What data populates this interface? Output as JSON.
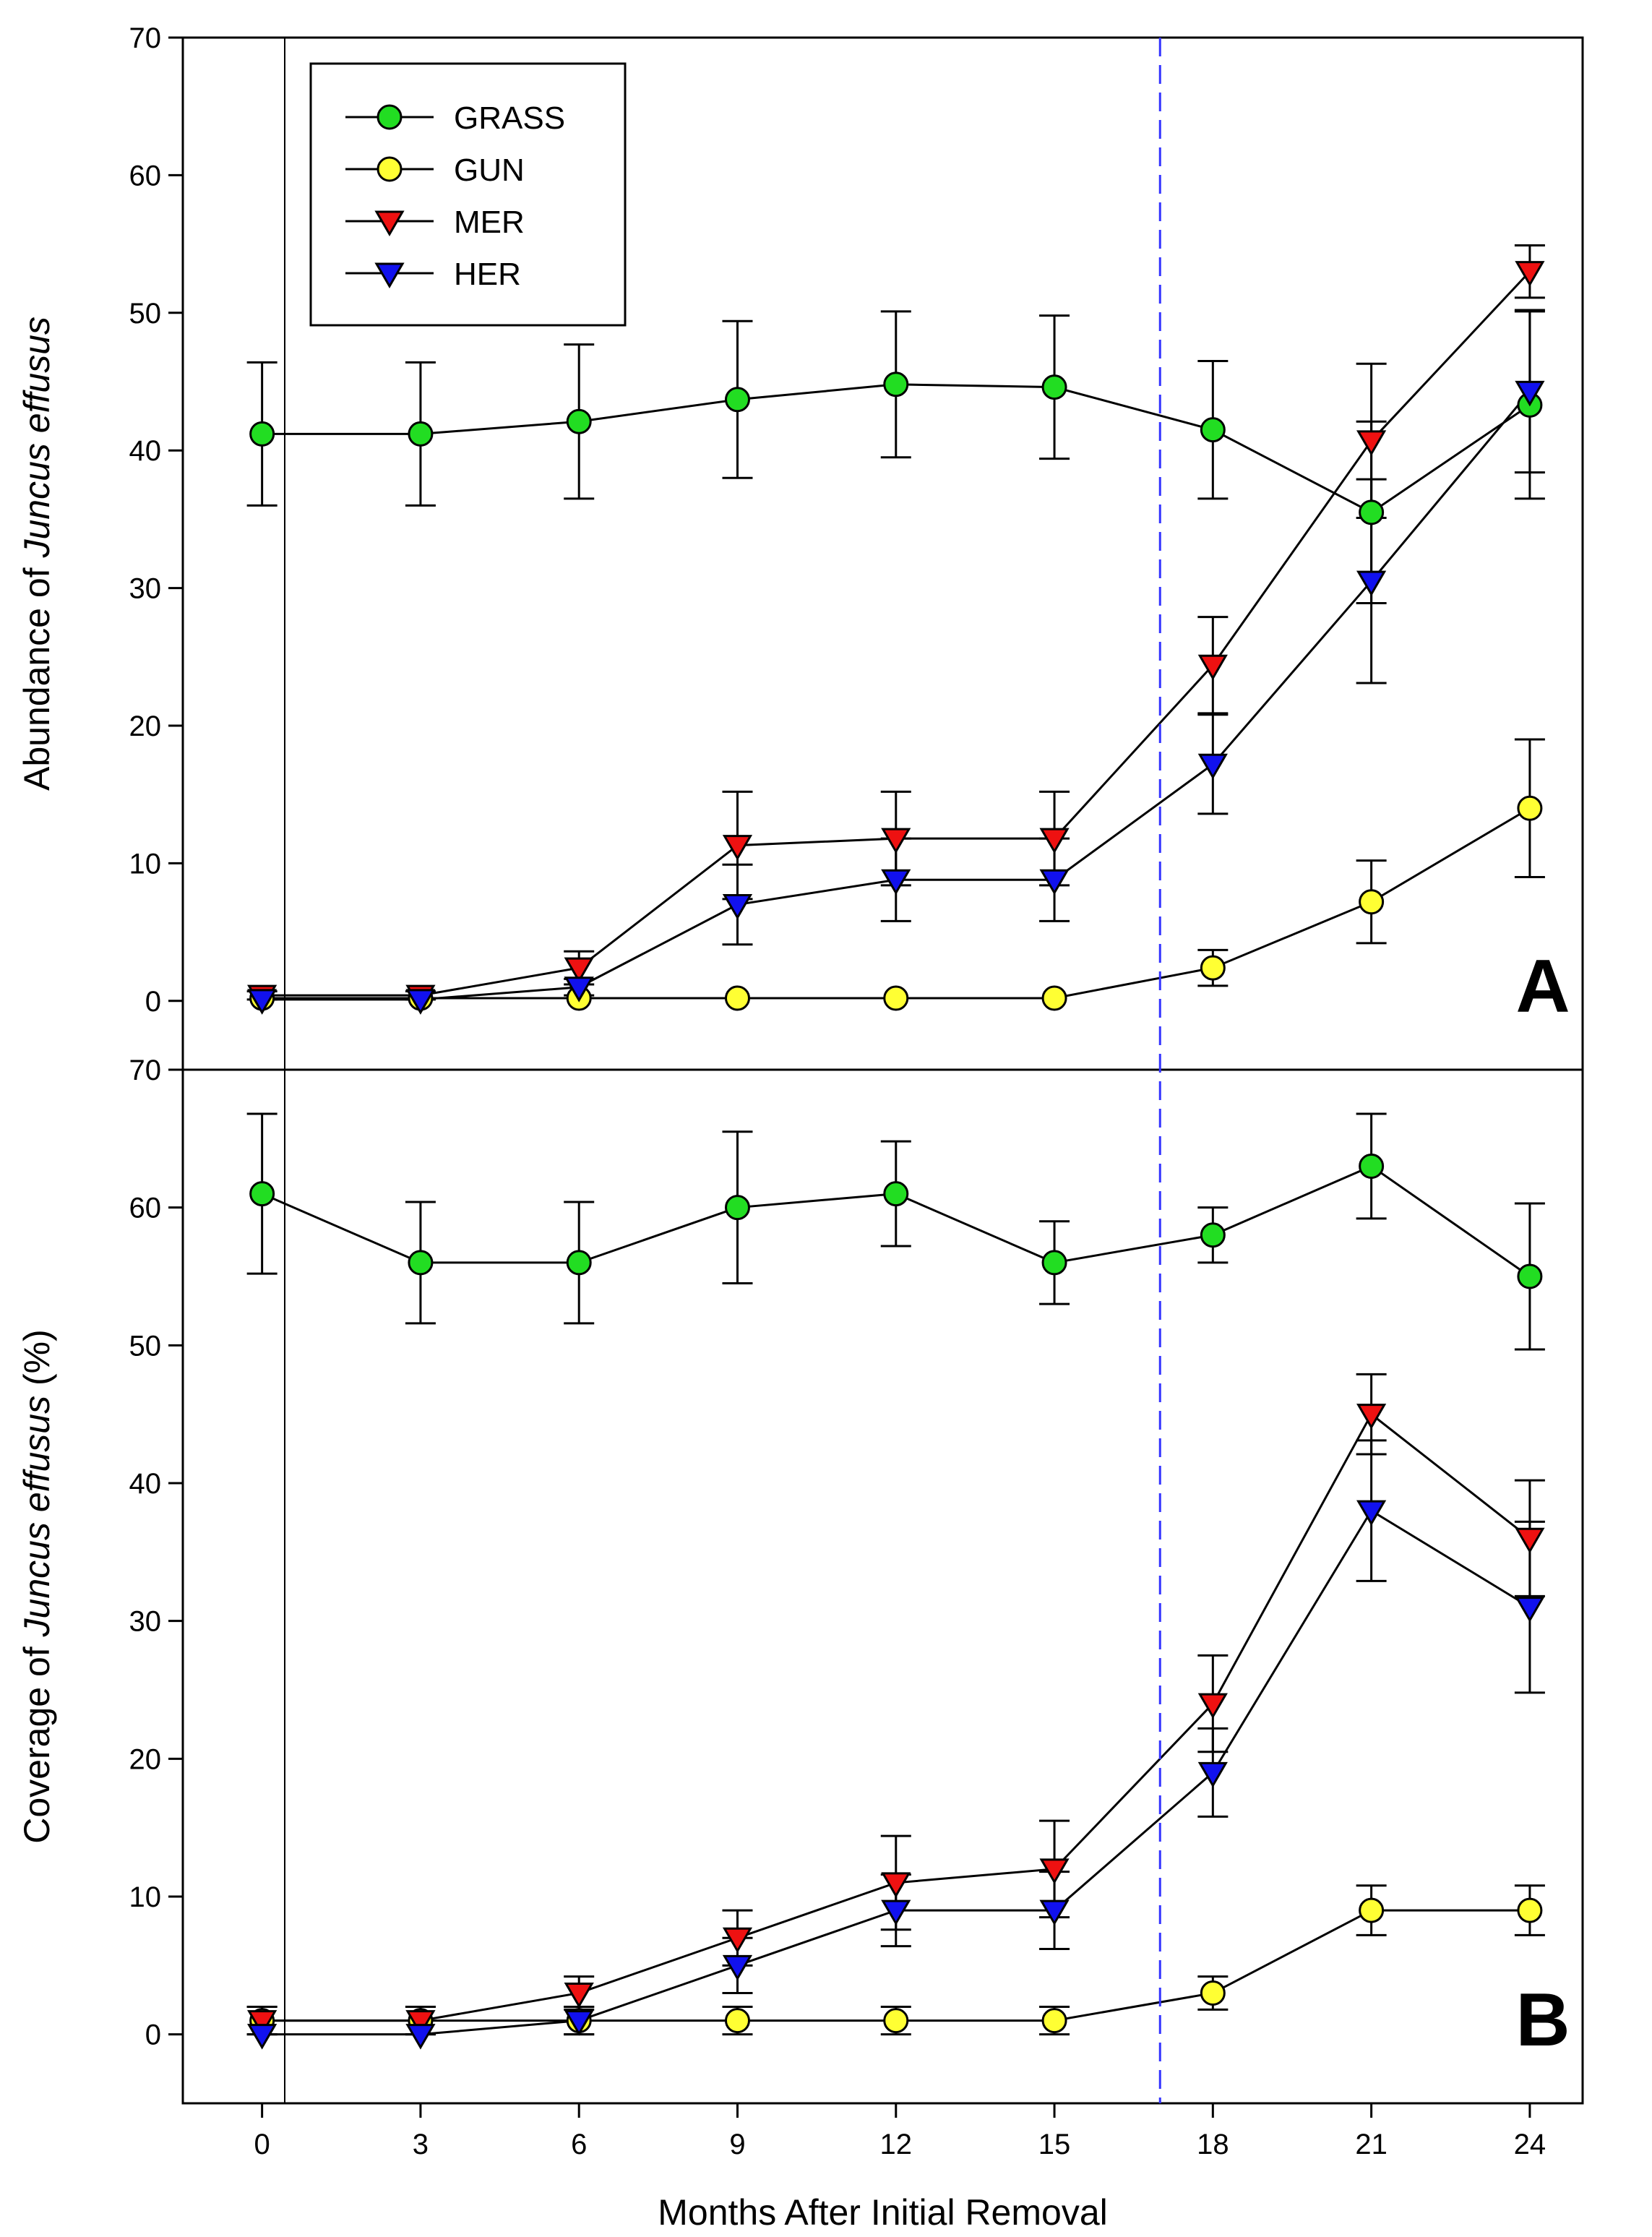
{
  "chart_data": {
    "type": "line",
    "xlabel": "Months After Initial Removal",
    "x": [
      0,
      3,
      6,
      9,
      12,
      15,
      18,
      21,
      24
    ],
    "xticks": [
      0,
      3,
      6,
      9,
      12,
      15,
      18,
      21,
      24
    ],
    "xlim": [
      -1.5,
      25
    ],
    "reference_line": {
      "x": 17,
      "style": "dashed",
      "color": "#3333ff"
    },
    "panels": [
      {
        "letter": "A",
        "ylabel_prefix": "Abundance of ",
        "ylabel_italic": "Juncus effusus",
        "ylabel_suffix": "",
        "ylim": [
          -5,
          70
        ],
        "yticks": [
          0,
          10,
          20,
          30,
          40,
          50,
          60,
          70
        ],
        "series": [
          {
            "name": "GRASS",
            "color": "#22dd22",
            "marker": "circle",
            "values": [
              41.2,
              41.2,
              42.1,
              43.7,
              44.8,
              44.6,
              41.5,
              35.5,
              43.3
            ],
            "errors": [
              5.2,
              5.2,
              5.6,
              5.7,
              5.3,
              5.2,
              5.0,
              6.6,
              6.8
            ]
          },
          {
            "name": "GUN",
            "color": "#ffff33",
            "marker": "circle",
            "values": [
              0.2,
              0.2,
              0.2,
              0.2,
              0.2,
              0.2,
              2.4,
              7.2,
              14.0
            ],
            "errors": [
              0,
              0,
              0,
              0,
              0,
              0,
              1.3,
              3.0,
              5.0
            ]
          },
          {
            "name": "MER",
            "color": "#ee1111",
            "marker": "triangle-down",
            "values": [
              0.4,
              0.4,
              2.4,
              11.3,
              11.8,
              11.8,
              24.4,
              40.7,
              53.0
            ],
            "errors": [
              0.3,
              0.3,
              1.2,
              3.9,
              3.4,
              3.4,
              3.5,
              5.6,
              1.9
            ]
          },
          {
            "name": "HER",
            "color": "#1111ee",
            "marker": "triangle-down",
            "values": [
              0.1,
              0.1,
              1.0,
              7.0,
              8.8,
              8.8,
              17.2,
              30.5,
              44.3
            ],
            "errors": [
              0,
              0,
              0.6,
              2.9,
              3.0,
              3.0,
              3.6,
              7.4,
              5.9
            ]
          }
        ]
      },
      {
        "letter": "B",
        "ylabel_prefix": "Coverage of ",
        "ylabel_italic": "Juncus effusus",
        "ylabel_suffix": " (%)",
        "ylim": [
          -5,
          70
        ],
        "yticks": [
          0,
          10,
          20,
          30,
          40,
          50,
          60,
          70
        ],
        "series": [
          {
            "name": "GRASS",
            "color": "#22dd22",
            "marker": "circle",
            "values": [
              61,
              56,
              56,
              60,
              61,
              56,
              58,
              63,
              55
            ],
            "errors": [
              5.8,
              4.4,
              4.4,
              5.5,
              3.8,
              3.0,
              2.0,
              3.8,
              5.3
            ]
          },
          {
            "name": "GUN",
            "color": "#ffff33",
            "marker": "circle",
            "values": [
              1,
              1,
              1,
              1,
              1,
              1,
              3,
              9,
              9
            ],
            "errors": [
              1.0,
              1.0,
              1.0,
              1.0,
              1.0,
              1.0,
              1.2,
              1.8,
              1.8
            ]
          },
          {
            "name": "MER",
            "color": "#ee1111",
            "marker": "triangle-down",
            "values": [
              1,
              1,
              3,
              7,
              11,
              12,
              24,
              45,
              36
            ],
            "errors": [
              1.0,
              1.0,
              1.2,
              2.0,
              3.4,
              3.5,
              3.5,
              2.9,
              4.2
            ]
          },
          {
            "name": "HER",
            "color": "#1111ee",
            "marker": "triangle-down",
            "values": [
              0,
              0,
              1,
              5,
              9,
              9,
              19,
              38,
              31
            ],
            "errors": [
              0,
              0,
              1.0,
              2.0,
              2.6,
              2.8,
              3.2,
              5.1,
              6.2
            ]
          }
        ]
      }
    ],
    "legend": {
      "placement": "top-left",
      "entries": [
        "GRASS",
        "GUN",
        "MER",
        "HER"
      ]
    }
  }
}
